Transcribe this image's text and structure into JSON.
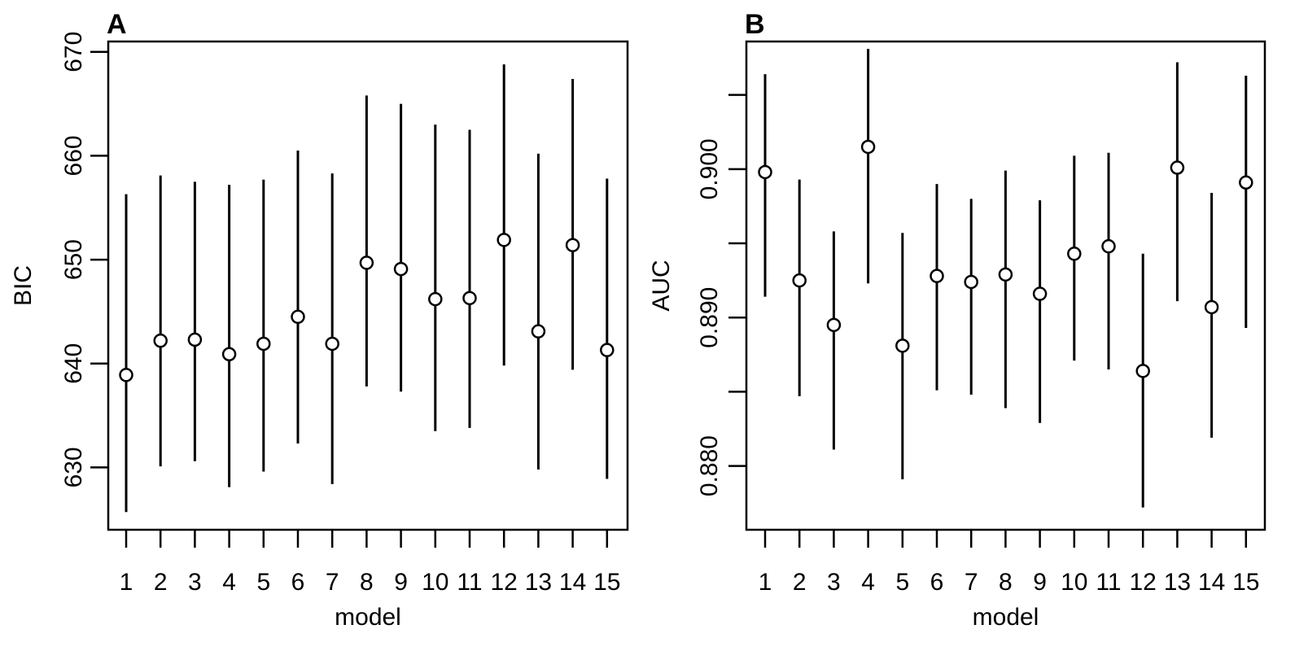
{
  "chart_data": [
    {
      "type": "scatter",
      "panel_label": "A",
      "title": "",
      "xlabel": "model",
      "ylabel": "BIC",
      "x_categories": [
        "1",
        "2",
        "3",
        "4",
        "5",
        "6",
        "7",
        "8",
        "9",
        "10",
        "11",
        "12",
        "13",
        "14",
        "15"
      ],
      "y_ticks": [
        "630",
        "640",
        "650",
        "660",
        "670"
      ],
      "ylim": [
        624,
        671
      ],
      "series": [
        {
          "points": [
            638.9,
            642.2,
            642.3,
            640.9,
            641.9,
            644.5,
            641.9,
            649.7,
            649.1,
            646.2,
            646.3,
            651.9,
            643.1,
            651.4,
            641.3
          ],
          "lower": [
            625.7,
            630.1,
            630.6,
            628.1,
            629.6,
            632.3,
            628.4,
            637.8,
            637.3,
            633.5,
            633.8,
            639.8,
            629.8,
            639.4,
            628.9
          ],
          "upper": [
            656.3,
            658.1,
            657.5,
            657.2,
            657.7,
            660.5,
            658.3,
            665.8,
            665.0,
            663.0,
            662.5,
            668.8,
            660.2,
            667.4,
            657.8
          ]
        }
      ],
      "grid": false,
      "legend": "none"
    },
    {
      "type": "scatter",
      "panel_label": "B",
      "title": "",
      "xlabel": "model",
      "ylabel": "AUC",
      "x_categories": [
        "1",
        "2",
        "3",
        "4",
        "5",
        "6",
        "7",
        "8",
        "9",
        "10",
        "11",
        "12",
        "13",
        "14",
        "15"
      ],
      "y_ticks": [
        "0.880",
        "0.890",
        "0.900"
      ],
      "y_minor_ticks": [
        0.885,
        0.895,
        0.905
      ],
      "ylim": [
        0.8757,
        0.9086
      ],
      "series": [
        {
          "points": [
            0.8998,
            0.8925,
            0.8895,
            0.9015,
            0.8881,
            0.8928,
            0.8924,
            0.8929,
            0.8916,
            0.8943,
            0.8948,
            0.8864,
            0.9001,
            0.8907,
            0.8991
          ],
          "lower": [
            0.8914,
            0.8847,
            0.8811,
            0.8923,
            0.8791,
            0.8851,
            0.8848,
            0.8839,
            0.8829,
            0.8871,
            0.8865,
            0.8772,
            0.8911,
            0.8819,
            0.8893
          ],
          "upper": [
            0.9064,
            0.8993,
            0.8958,
            0.9081,
            0.8957,
            0.899,
            0.898,
            0.8999,
            0.8979,
            0.9009,
            0.9011,
            0.8943,
            0.9072,
            0.8984,
            0.9063
          ]
        }
      ],
      "grid": false,
      "legend": "none"
    }
  ]
}
